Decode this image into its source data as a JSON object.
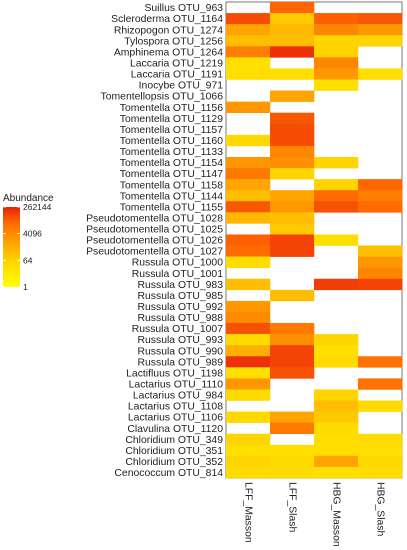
{
  "chart_data": {
    "type": "heatmap",
    "title": "",
    "xlabel": "",
    "ylabel": "",
    "columns": [
      "LFF_Masson",
      "LFF_Slash",
      "HBG_Masson",
      "HBG_Slash"
    ],
    "rows": [
      "Suillus OTU_963",
      "Scleroderma OTU_1164",
      "Rhizopogon OTU_1274",
      "Tylospora OTU_1256",
      "Amphinema OTU_1264",
      "Laccaria OTU_1219",
      "Laccaria OTU_1191",
      "Inocybe OTU_971",
      "Tomentellopsis OTU_1066",
      "Tomentella OTU_1156",
      "Tomentella OTU_1129",
      "Tomentella OTU_1157",
      "Tomentella OTU_1160",
      "Tomentella OTU_1133",
      "Tomentella OTU_1154",
      "Tomentella OTU_1147",
      "Tomentella OTU_1158",
      "Tomentella OTU_1144",
      "Tomentella OTU_1155",
      "Pseudotomentella OTU_1028",
      "Pseudotomentella OTU_1025",
      "Pseudotomentella OTU_1026",
      "Pseudotomentella OTU_1027",
      "Russula OTU_1000",
      "Russula OTU_1001",
      "Russula OTU_983",
      "Russula OTU_985",
      "Russula OTU_992",
      "Russula OTU_988",
      "Russula OTU_1007",
      "Russula OTU_993",
      "Russula OTU_990",
      "Russula OTU_989",
      "Lactifluus OTU_1198",
      "Lactarius OTU_1110",
      "Lactarius OTU_984",
      "Lactarius OTU_1108",
      "Lactarius OTU_1106",
      "Clavulina OTU_1120",
      "Chloridium OTU_349",
      "Chloridium OTU_351",
      "Chloridium OTU_352",
      "Cenococcum OTU_814"
    ],
    "values": [
      [
        null,
        25000,
        null,
        null
      ],
      [
        60000,
        100,
        30000,
        40000
      ],
      [
        1000,
        300,
        5000,
        2000
      ],
      [
        200,
        200,
        50,
        50
      ],
      [
        8000,
        150000,
        60,
        null
      ],
      [
        20,
        null,
        5000,
        null
      ],
      [
        20,
        20,
        2000,
        20
      ],
      [
        null,
        null,
        20,
        null
      ],
      [
        null,
        1000,
        null,
        null
      ],
      [
        2000,
        null,
        null,
        null
      ],
      [
        null,
        40000,
        null,
        null
      ],
      [
        null,
        60000,
        null,
        null
      ],
      [
        40,
        60000,
        null,
        null
      ],
      [
        null,
        5000,
        null,
        null
      ],
      [
        2000,
        3000,
        50,
        null
      ],
      [
        10000,
        50,
        null,
        null
      ],
      [
        1000,
        null,
        50,
        25000
      ],
      [
        200,
        1000,
        20000,
        8000
      ],
      [
        40000,
        2000,
        50000,
        20000
      ],
      [
        300,
        200,
        null,
        null
      ],
      [
        null,
        100,
        null,
        null
      ],
      [
        30000,
        80000,
        20,
        null
      ],
      [
        20000,
        80000,
        null,
        200
      ],
      [
        30,
        null,
        null,
        2000
      ],
      [
        null,
        null,
        null,
        5000
      ],
      [
        200,
        null,
        100000,
        80000
      ],
      [
        null,
        200,
        null,
        null
      ],
      [
        2000,
        null,
        null,
        null
      ],
      [
        4000,
        null,
        null,
        null
      ],
      [
        50000,
        10000,
        null,
        null
      ],
      [
        30,
        3000,
        50,
        null
      ],
      [
        500,
        80000,
        20,
        null
      ],
      [
        150000,
        80000,
        30,
        15000
      ],
      [
        20,
        50000,
        null,
        null
      ],
      [
        2000,
        null,
        null,
        15000
      ],
      [
        30,
        null,
        50,
        null
      ],
      [
        null,
        null,
        200,
        30
      ],
      [
        40,
        1000,
        100,
        null
      ],
      [
        null,
        10000,
        30,
        null
      ],
      [
        50,
        null,
        20,
        30
      ],
      [
        20,
        20,
        20,
        20
      ],
      [
        50,
        30,
        1000,
        40
      ],
      [
        30,
        30,
        20,
        30
      ]
    ],
    "scale": "log",
    "legend": {
      "title": "Abundance",
      "ticks": [
        "262144",
        "4096",
        "64",
        "1"
      ],
      "range": [
        1,
        262144
      ],
      "position": "left",
      "colors": [
        "#FFFF00",
        "#FFD700",
        "#FFA500",
        "#FF6A00",
        "#E8200A"
      ]
    },
    "grid": false
  }
}
